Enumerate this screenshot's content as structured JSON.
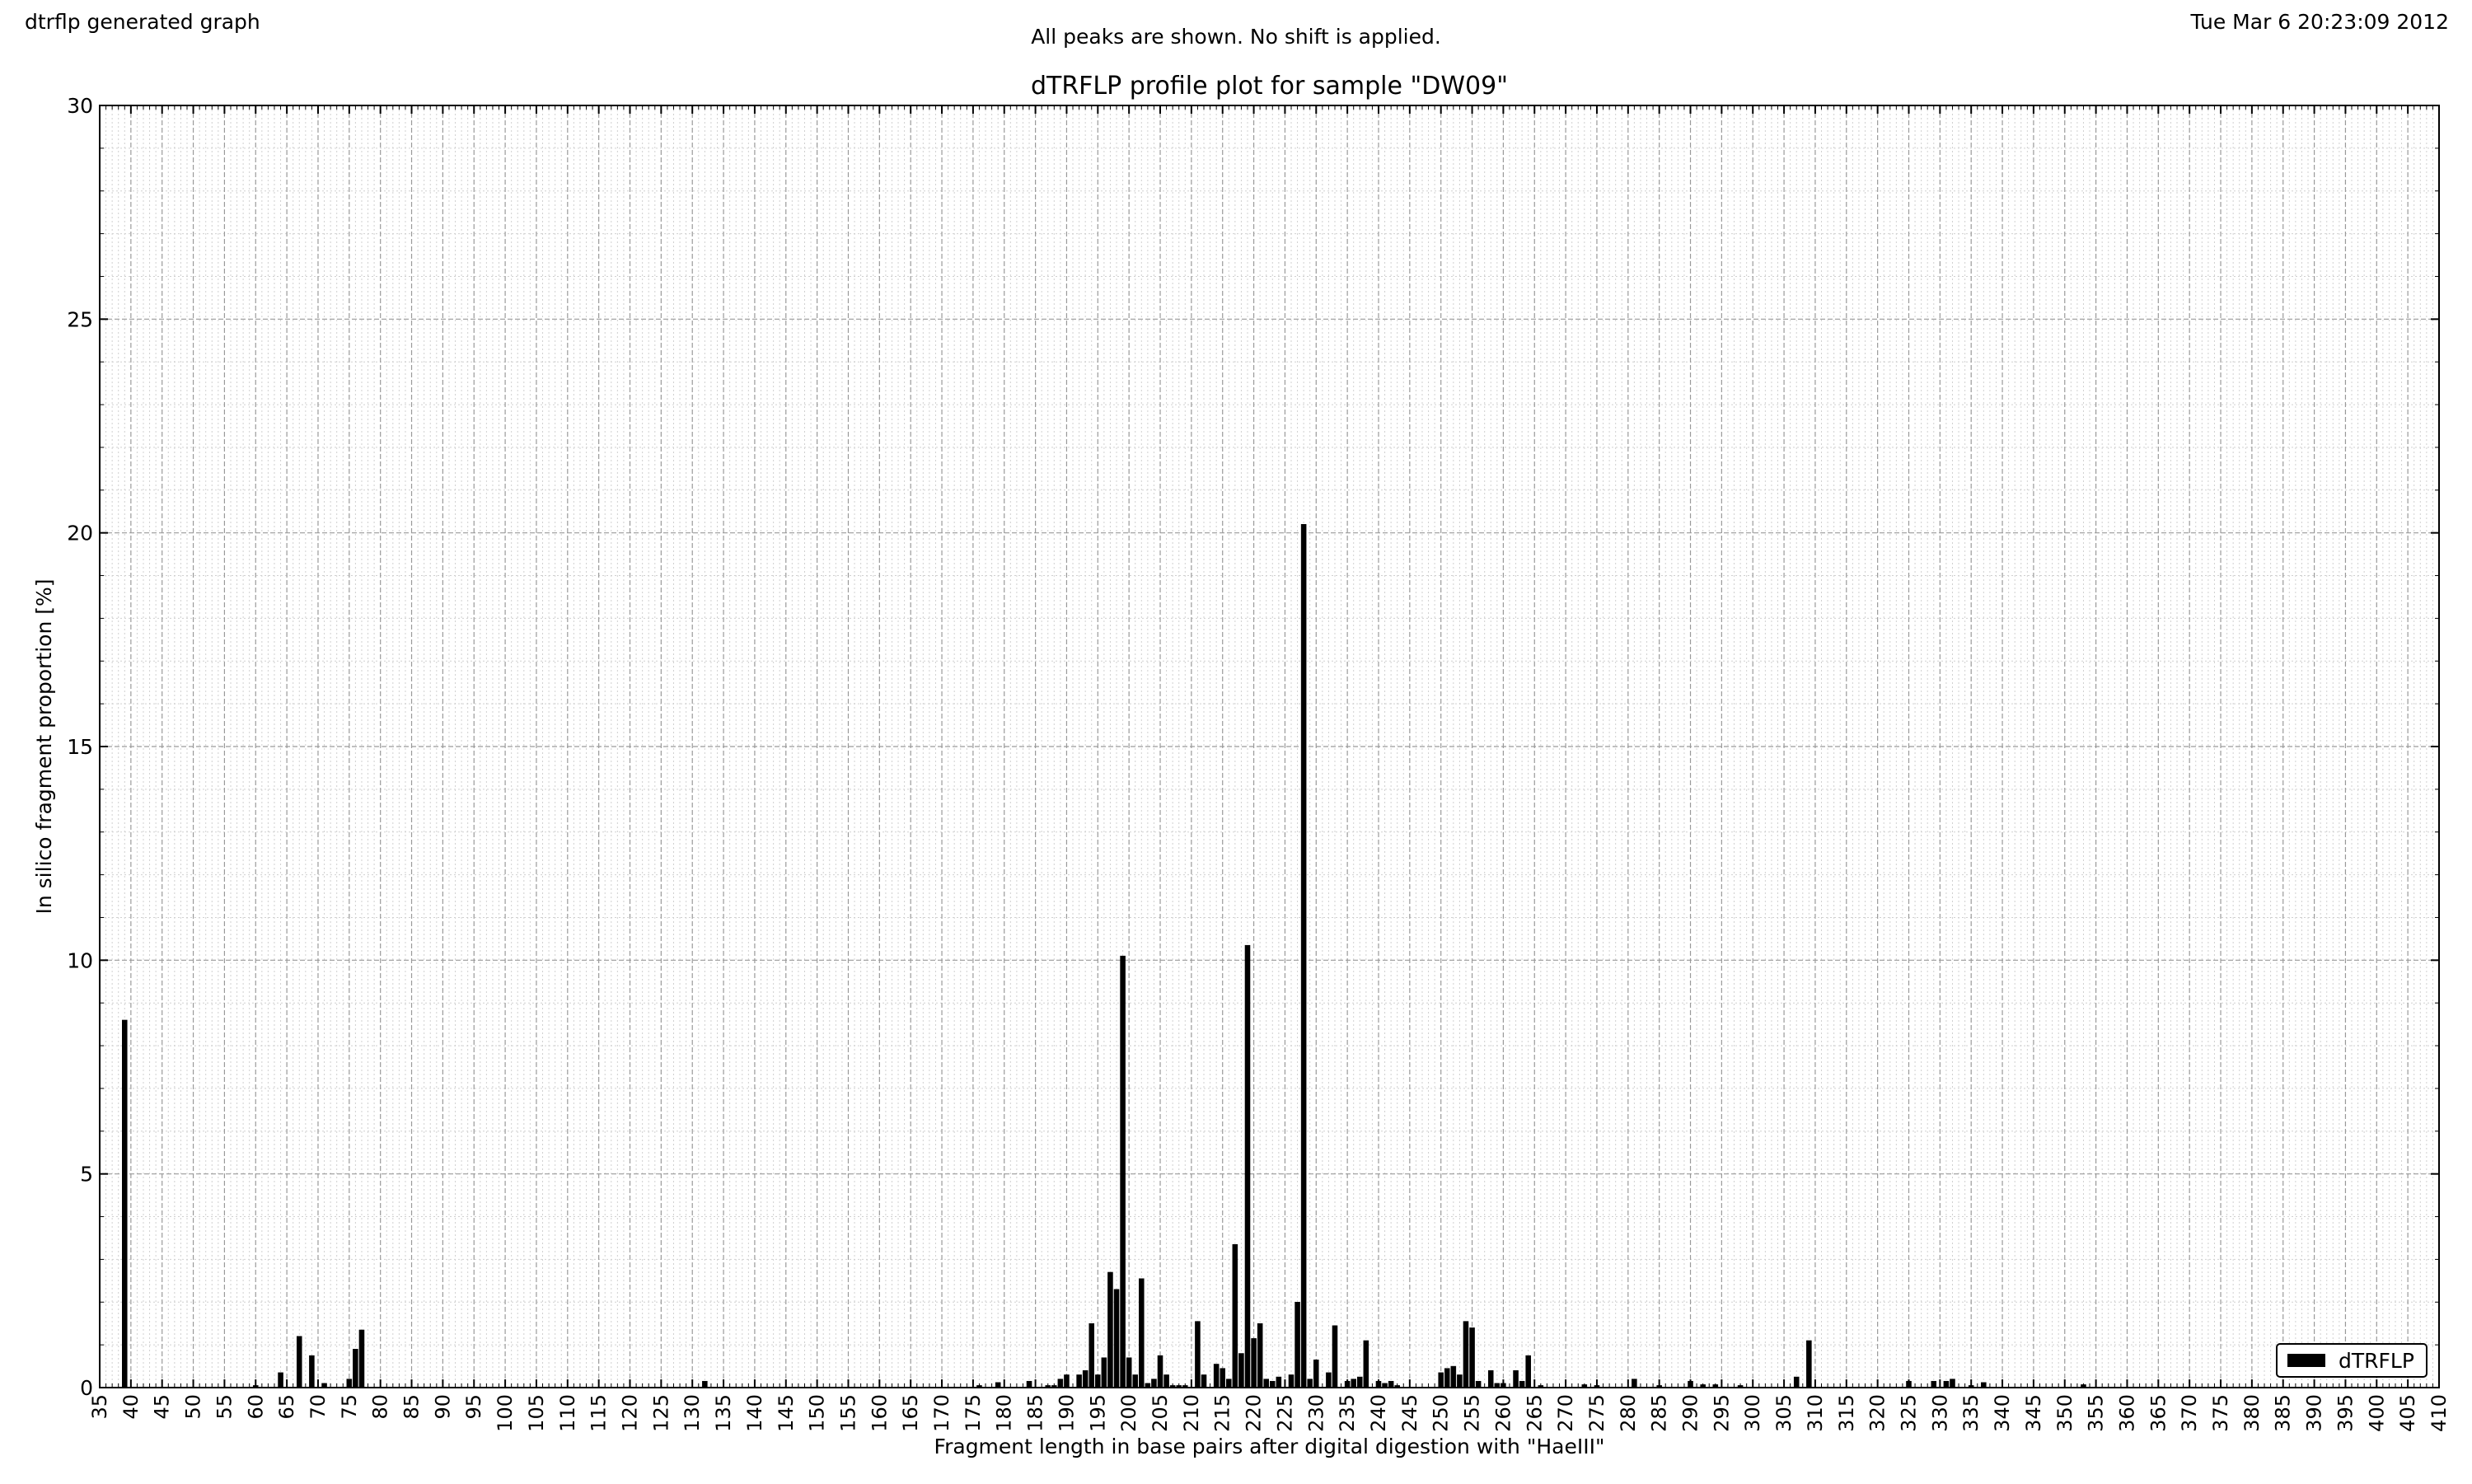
{
  "header": {
    "left_text": "dtrflp generated graph",
    "center_text": "All peaks are shown. No shift is applied.",
    "right_text": "Tue Mar  6 20:23:09 2012"
  },
  "chart_data": {
    "type": "bar",
    "title": "dTRFLP profile plot for sample \"DW09\"",
    "xlabel": "Fragment length in base pairs after digital digestion with \"HaeIII\"",
    "ylabel": "In silico fragment proportion [%]",
    "xlim": [
      35,
      410
    ],
    "ylim": [
      0,
      30
    ],
    "x_ticks": [
      35,
      40,
      45,
      50,
      55,
      60,
      65,
      70,
      75,
      80,
      85,
      90,
      95,
      100,
      105,
      110,
      115,
      120,
      125,
      130,
      135,
      140,
      145,
      150,
      155,
      160,
      165,
      170,
      175,
      180,
      185,
      190,
      195,
      200,
      205,
      210,
      215,
      220,
      225,
      230,
      235,
      240,
      245,
      250,
      255,
      260,
      265,
      270,
      275,
      280,
      285,
      290,
      295,
      300,
      305,
      310,
      315,
      320,
      325,
      330,
      335,
      340,
      345,
      350,
      355,
      360,
      365,
      370,
      375,
      380,
      385,
      390,
      395,
      400,
      405,
      410
    ],
    "y_ticks": [
      0,
      5,
      10,
      15,
      20,
      25,
      30
    ],
    "grid": true,
    "legend_position": "bottom-right",
    "bar_color": "#000000",
    "series": [
      {
        "name": "dTRFLP",
        "points": [
          {
            "x": 39,
            "y": 8.6
          },
          {
            "x": 60,
            "y": 0.05
          },
          {
            "x": 64,
            "y": 0.35
          },
          {
            "x": 67,
            "y": 1.2
          },
          {
            "x": 69,
            "y": 0.75
          },
          {
            "x": 71,
            "y": 0.1
          },
          {
            "x": 75,
            "y": 0.2
          },
          {
            "x": 76,
            "y": 0.9
          },
          {
            "x": 77,
            "y": 1.35
          },
          {
            "x": 132,
            "y": 0.15
          },
          {
            "x": 176,
            "y": 0.05
          },
          {
            "x": 179,
            "y": 0.12
          },
          {
            "x": 184,
            "y": 0.15
          },
          {
            "x": 187,
            "y": 0.05
          },
          {
            "x": 188,
            "y": 0.05
          },
          {
            "x": 189,
            "y": 0.2
          },
          {
            "x": 190,
            "y": 0.3
          },
          {
            "x": 192,
            "y": 0.3
          },
          {
            "x": 193,
            "y": 0.4
          },
          {
            "x": 194,
            "y": 1.5
          },
          {
            "x": 195,
            "y": 0.3
          },
          {
            "x": 196,
            "y": 0.7
          },
          {
            "x": 197,
            "y": 2.7
          },
          {
            "x": 198,
            "y": 2.3
          },
          {
            "x": 199,
            "y": 10.1
          },
          {
            "x": 200,
            "y": 0.7
          },
          {
            "x": 201,
            "y": 0.3
          },
          {
            "x": 202,
            "y": 2.55
          },
          {
            "x": 203,
            "y": 0.1
          },
          {
            "x": 204,
            "y": 0.2
          },
          {
            "x": 205,
            "y": 0.75
          },
          {
            "x": 206,
            "y": 0.3
          },
          {
            "x": 207,
            "y": 0.05
          },
          {
            "x": 208,
            "y": 0.05
          },
          {
            "x": 209,
            "y": 0.05
          },
          {
            "x": 211,
            "y": 1.55
          },
          {
            "x": 212,
            "y": 0.3
          },
          {
            "x": 214,
            "y": 0.55
          },
          {
            "x": 215,
            "y": 0.45
          },
          {
            "x": 216,
            "y": 0.2
          },
          {
            "x": 217,
            "y": 3.35
          },
          {
            "x": 218,
            "y": 0.8
          },
          {
            "x": 219,
            "y": 10.35
          },
          {
            "x": 220,
            "y": 1.15
          },
          {
            "x": 221,
            "y": 1.5
          },
          {
            "x": 222,
            "y": 0.2
          },
          {
            "x": 223,
            "y": 0.15
          },
          {
            "x": 224,
            "y": 0.25
          },
          {
            "x": 226,
            "y": 0.3
          },
          {
            "x": 227,
            "y": 2.0
          },
          {
            "x": 228,
            "y": 20.2
          },
          {
            "x": 229,
            "y": 0.2
          },
          {
            "x": 230,
            "y": 0.65
          },
          {
            "x": 232,
            "y": 0.35
          },
          {
            "x": 233,
            "y": 1.45
          },
          {
            "x": 235,
            "y": 0.15
          },
          {
            "x": 236,
            "y": 0.2
          },
          {
            "x": 237,
            "y": 0.25
          },
          {
            "x": 238,
            "y": 1.1
          },
          {
            "x": 240,
            "y": 0.15
          },
          {
            "x": 241,
            "y": 0.1
          },
          {
            "x": 242,
            "y": 0.15
          },
          {
            "x": 243,
            "y": 0.05
          },
          {
            "x": 250,
            "y": 0.35
          },
          {
            "x": 251,
            "y": 0.45
          },
          {
            "x": 252,
            "y": 0.5
          },
          {
            "x": 253,
            "y": 0.3
          },
          {
            "x": 254,
            "y": 1.55
          },
          {
            "x": 255,
            "y": 1.4
          },
          {
            "x": 256,
            "y": 0.15
          },
          {
            "x": 258,
            "y": 0.4
          },
          {
            "x": 259,
            "y": 0.1
          },
          {
            "x": 260,
            "y": 0.1
          },
          {
            "x": 262,
            "y": 0.4
          },
          {
            "x": 263,
            "y": 0.15
          },
          {
            "x": 264,
            "y": 0.75
          },
          {
            "x": 266,
            "y": 0.05
          },
          {
            "x": 273,
            "y": 0.07
          },
          {
            "x": 275,
            "y": 0.05
          },
          {
            "x": 281,
            "y": 0.2
          },
          {
            "x": 285,
            "y": 0.05
          },
          {
            "x": 290,
            "y": 0.15
          },
          {
            "x": 292,
            "y": 0.07
          },
          {
            "x": 294,
            "y": 0.07
          },
          {
            "x": 298,
            "y": 0.05
          },
          {
            "x": 307,
            "y": 0.25
          },
          {
            "x": 309,
            "y": 1.1
          },
          {
            "x": 325,
            "y": 0.15
          },
          {
            "x": 329,
            "y": 0.15
          },
          {
            "x": 331,
            "y": 0.15
          },
          {
            "x": 332,
            "y": 0.2
          },
          {
            "x": 335,
            "y": 0.05
          },
          {
            "x": 337,
            "y": 0.12
          },
          {
            "x": 353,
            "y": 0.07
          }
        ]
      }
    ]
  }
}
